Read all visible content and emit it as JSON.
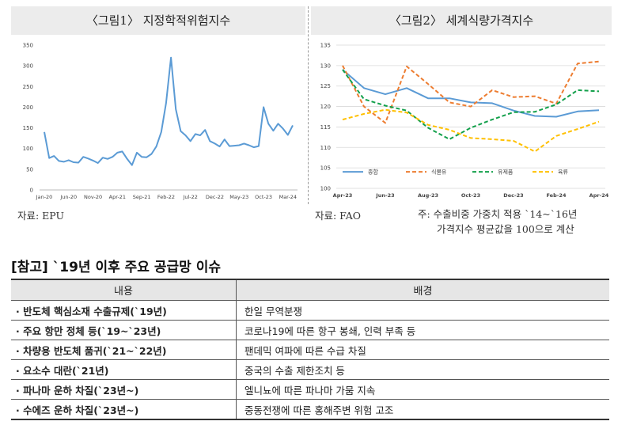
{
  "fig1": {
    "title": "〈그림1〉 지정학적위험지수",
    "source": "자료: EPU",
    "chart_data": {
      "type": "line",
      "ylim": [
        0,
        350
      ],
      "yticks": [
        0,
        50,
        100,
        150,
        200,
        250,
        300,
        350
      ],
      "xticks": [
        "Jan-20",
        "Jun-20",
        "Nov-20",
        "Apr-21",
        "Sep-21",
        "Feb-22",
        "Jul-22",
        "Dec-22",
        "May-23",
        "Oct-23",
        "Mar-24"
      ],
      "line_color": "#5b9bd5",
      "values": [
        140,
        77,
        82,
        70,
        68,
        72,
        67,
        66,
        80,
        76,
        71,
        65,
        78,
        75,
        80,
        90,
        93,
        75,
        60,
        90,
        80,
        79,
        87,
        105,
        140,
        210,
        320,
        195,
        142,
        132,
        118,
        135,
        132,
        145,
        118,
        112,
        105,
        122,
        106,
        107,
        108,
        112,
        108,
        103,
        106,
        200,
        160,
        143,
        160,
        148,
        133,
        156
      ]
    }
  },
  "fig2": {
    "title": "〈그림2〉 세계식량가격지수",
    "source": "자료: FAO",
    "note_line1": "주: 수출비중 가중치 적용 `14~`16년",
    "note_line2": "가격지수 평균값을 100으로 계산",
    "chart_data": {
      "type": "line",
      "ylim": [
        100,
        135
      ],
      "yticks": [
        100,
        105,
        110,
        115,
        120,
        125,
        130,
        135
      ],
      "xticks": [
        "Apr-23",
        "Jun-23",
        "Aug-23",
        "Oct-23",
        "Dec-23",
        "Feb-24",
        "Apr-24"
      ],
      "categories": [
        "Apr-23",
        "May-23",
        "Jun-23",
        "Jul-23",
        "Aug-23",
        "Sep-23",
        "Oct-23",
        "Nov-23",
        "Dec-23",
        "Jan-24",
        "Feb-24",
        "Mar-24",
        "Apr-24"
      ],
      "series": [
        {
          "name": "종합",
          "color": "#5b9bd5",
          "dash": "",
          "values": [
            129,
            124.5,
            123,
            124.5,
            122,
            122,
            121,
            120.8,
            119,
            117.7,
            117.5,
            118.8,
            119.1
          ]
        },
        {
          "name": "식물유",
          "color": "#ed7d31",
          "dash": "5,3",
          "values": [
            130,
            120,
            116,
            129.8,
            125.5,
            121,
            120,
            124,
            122.3,
            122.5,
            120.7,
            130.5,
            131
          ]
        },
        {
          "name": "유제품",
          "color": "#13a04b",
          "dash": "5,3",
          "values": [
            129,
            121.8,
            120.2,
            119,
            114.8,
            112,
            114.8,
            116.8,
            118.6,
            118.7,
            120.5,
            124,
            123.7
          ]
        },
        {
          "name": "육류",
          "color": "#ffc000",
          "dash": "5,3",
          "values": [
            116.8,
            118.2,
            119.2,
            118.5,
            115.5,
            114.3,
            112.3,
            112,
            111.6,
            109,
            112.8,
            114.5,
            116.3
          ]
        }
      ]
    }
  },
  "reference": {
    "title": "[참고] `19년 이후 주요 공급망 이슈",
    "header": [
      "내용",
      "배경"
    ],
    "rows": [
      [
        "· 반도체 핵심소재 수출규제(`19년)",
        "한일 무역분쟁"
      ],
      [
        "· 주요 항만 정체 등(`19~`23년)",
        "코로나19에 따른 항구 봉쇄, 인력 부족 등"
      ],
      [
        "· 차량용 반도체 품귀(`21~`22년)",
        "팬데믹 여파에 따른 수급 차질"
      ],
      [
        "· 요소수 대란(`21년)",
        "중국의 수출 제한조치 등"
      ],
      [
        "· 파나마 운하 차질(`23년~)",
        "엘니뇨에 따른 파나마 가뭄 지속"
      ],
      [
        "· 수에즈 운하 차질(`23년~)",
        "중동전쟁에 따른 홍해주변 위험 고조"
      ]
    ]
  }
}
